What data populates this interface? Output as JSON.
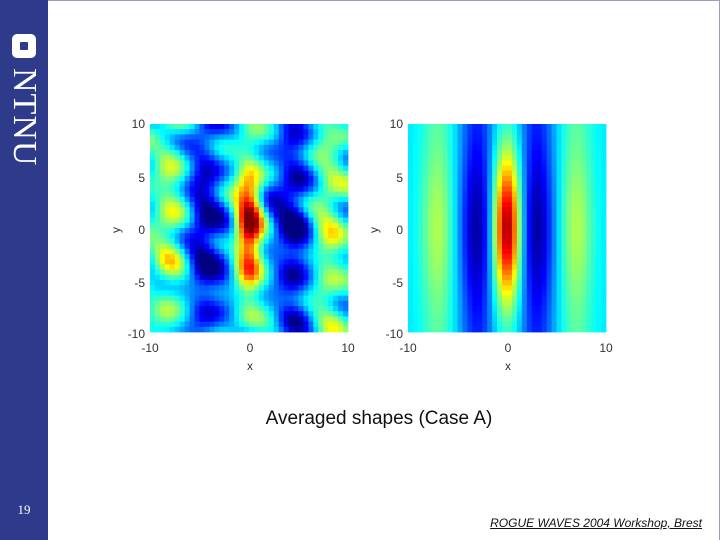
{
  "slide": {
    "number": "19",
    "logo_text": "NTNU",
    "caption": "Averaged shapes (Case A)",
    "footer": "ROGUE WAVES 2004 Workshop, Brest"
  },
  "chart_data": [
    {
      "type": "heatmap",
      "title": "",
      "xlabel": "x",
      "ylabel": "y",
      "xlim": [
        -10,
        10
      ],
      "ylim": [
        -10,
        10
      ],
      "x_ticks": [
        "-10",
        "0",
        "10"
      ],
      "y_ticks": [
        "10",
        "5",
        "0",
        "-5",
        "-10"
      ],
      "colormap": "jet",
      "background_level": 0.35,
      "peak_level": 1.0,
      "peak_center": [
        0,
        0
      ],
      "troughs_at_x": [
        -4.5,
        4.5
      ],
      "secondary_crests_at_x": [
        -8,
        8
      ],
      "pattern": "noisy"
    },
    {
      "type": "heatmap",
      "title": "",
      "xlabel": "x",
      "ylabel": "y",
      "xlim": [
        -10,
        10
      ],
      "ylim": [
        -10,
        10
      ],
      "x_ticks": [
        "-10",
        "0",
        "10"
      ],
      "y_ticks": [
        "10",
        "5",
        "0",
        "-5",
        "-10"
      ],
      "colormap": "jet",
      "background_level": 0.35,
      "peak_level": 1.0,
      "peak_center": [
        0,
        0
      ],
      "troughs_at_x": [
        -3,
        3
      ],
      "secondary_crests_at_x": [
        -7,
        7
      ],
      "pattern": "smooth"
    }
  ]
}
